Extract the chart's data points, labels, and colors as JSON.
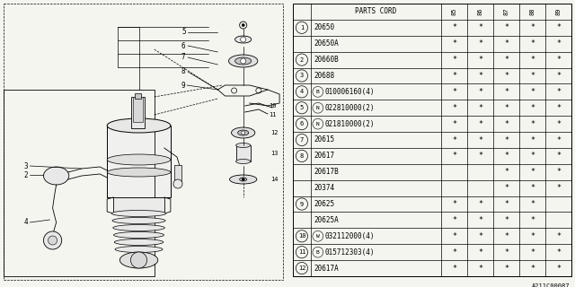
{
  "bg_color": "#f5f5f0",
  "parts_cord_header": "PARTS CORD",
  "year_cols": [
    "85",
    "86",
    "87",
    "88",
    "89"
  ],
  "rows": [
    {
      "ref": "1",
      "prefix": "",
      "part": "20650",
      "stars": [
        true,
        true,
        true,
        true,
        true
      ]
    },
    {
      "ref": "",
      "prefix": "",
      "part": "20650A",
      "stars": [
        true,
        true,
        true,
        true,
        true
      ]
    },
    {
      "ref": "2",
      "prefix": "",
      "part": "20660B",
      "stars": [
        true,
        true,
        true,
        true,
        true
      ]
    },
    {
      "ref": "3",
      "prefix": "",
      "part": "20688",
      "stars": [
        true,
        true,
        true,
        true,
        true
      ]
    },
    {
      "ref": "4",
      "prefix": "B",
      "part": "010006160(4)",
      "stars": [
        true,
        true,
        true,
        true,
        true
      ]
    },
    {
      "ref": "5",
      "prefix": "N",
      "part": "022810000(2)",
      "stars": [
        true,
        true,
        true,
        true,
        true
      ]
    },
    {
      "ref": "6",
      "prefix": "N",
      "part": "021810000(2)",
      "stars": [
        true,
        true,
        true,
        true,
        true
      ]
    },
    {
      "ref": "7",
      "prefix": "",
      "part": "20615",
      "stars": [
        true,
        true,
        true,
        true,
        true
      ]
    },
    {
      "ref": "8",
      "prefix": "",
      "part": "20617",
      "stars": [
        true,
        true,
        true,
        true,
        true
      ]
    },
    {
      "ref": "",
      "prefix": "",
      "part": "20617B",
      "stars": [
        false,
        false,
        true,
        true,
        true
      ]
    },
    {
      "ref": "",
      "prefix": "",
      "part": "20374",
      "stars": [
        false,
        false,
        true,
        true,
        true
      ]
    },
    {
      "ref": "9",
      "prefix": "",
      "part": "20625",
      "stars": [
        true,
        true,
        true,
        true,
        false
      ]
    },
    {
      "ref": "",
      "prefix": "",
      "part": "20625A",
      "stars": [
        true,
        true,
        true,
        true,
        false
      ]
    },
    {
      "ref": "10",
      "prefix": "W",
      "part": "032112000(4)",
      "stars": [
        true,
        true,
        true,
        true,
        true
      ]
    },
    {
      "ref": "11",
      "prefix": "B",
      "part": "015712303(4)",
      "stars": [
        true,
        true,
        true,
        true,
        true
      ]
    },
    {
      "ref": "12",
      "prefix": "",
      "part": "20617A",
      "stars": [
        true,
        true,
        true,
        true,
        true
      ]
    }
  ],
  "footer": "A211C00087",
  "line_color": "#000000",
  "text_color": "#000000",
  "table_font_size": 5.5,
  "header_font_size": 5.5,
  "star_symbol": "*"
}
